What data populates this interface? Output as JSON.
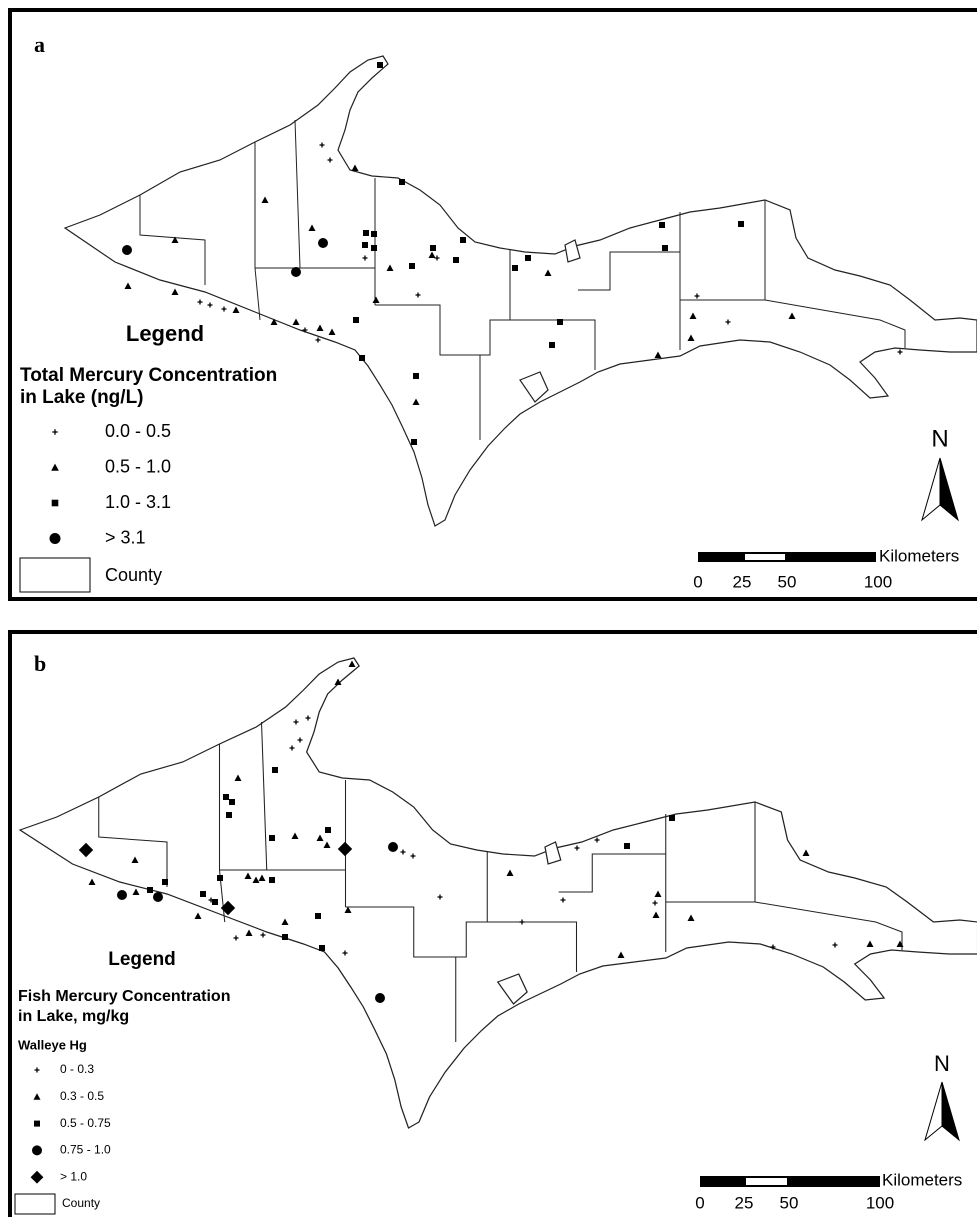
{
  "panels": [
    {
      "label": "a",
      "legend": {
        "heading": "Legend",
        "title_lines": [
          "Total Mercury Concentration",
          "in Lake (ng/L)"
        ],
        "items": [
          "0.0 - 0.5",
          "0.5 - 1.0",
          "1.0 - 3.1",
          "> 3.1"
        ],
        "county": "County"
      },
      "north": "N",
      "scale": {
        "unit": "Kilometers",
        "labels": [
          "0",
          "25",
          "50",
          "100"
        ]
      }
    },
    {
      "label": "b",
      "legend": {
        "heading": "Legend",
        "title_lines": [
          "Fish Mercury Concentration",
          "in Lake, mg/kg"
        ],
        "group": "Walleye Hg",
        "items": [
          "0 - 0.3",
          "0.3 - 0.5",
          "0.5 - 0.75",
          "0.75 - 1.0",
          "> 1.0"
        ],
        "county": "County"
      },
      "north": "N",
      "scale": {
        "unit": "Kilometers",
        "labels": [
          "0",
          "25",
          "50",
          "100"
        ]
      }
    }
  ]
}
